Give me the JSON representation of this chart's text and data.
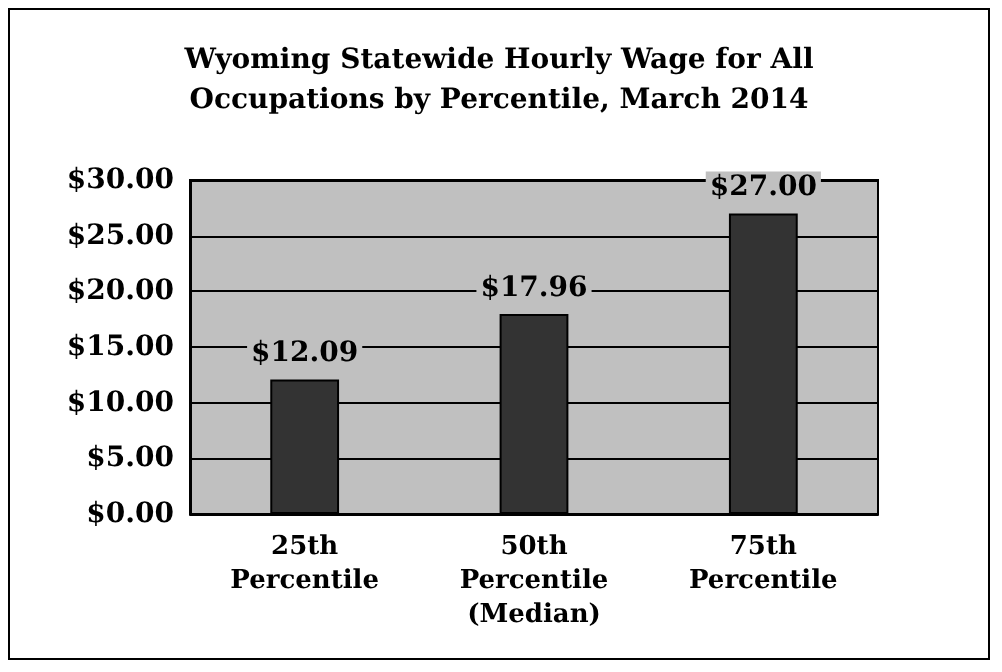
{
  "chart_data": {
    "type": "bar",
    "title": "Wyoming Statewide Hourly Wage for All\nOccupations by Percentile, March 2014",
    "categories": [
      "25th\nPercentile",
      "50th\nPercentile\n(Median)",
      "75th\nPercentile"
    ],
    "values": [
      12.09,
      17.96,
      27.0
    ],
    "color": "#333333",
    "value_labels": [
      "$12.09",
      "$17.96",
      "$27.00"
    ],
    "ylim": [
      0,
      30
    ],
    "yticks": [
      {
        "value": 0,
        "label": "$0.00"
      },
      {
        "value": 5,
        "label": "$5.00"
      },
      {
        "value": 10,
        "label": "$10.00"
      },
      {
        "value": 15,
        "label": "$15.00"
      },
      {
        "value": 20,
        "label": "$20.00"
      },
      {
        "value": 25,
        "label": "$25.00"
      },
      {
        "value": 30,
        "label": "$30.00"
      }
    ],
    "grid": "y"
  }
}
